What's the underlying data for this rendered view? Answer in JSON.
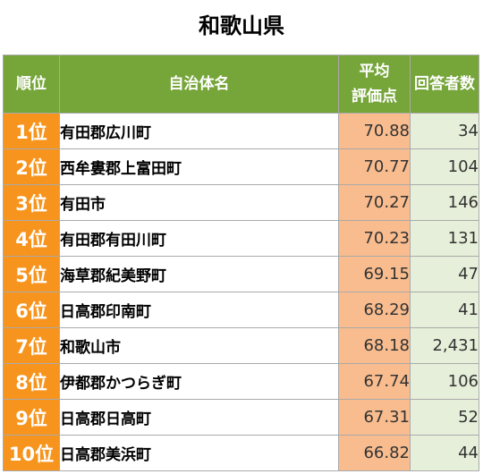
{
  "title": "和歌山県",
  "table": {
    "headers": {
      "rank": "順位",
      "municipality": "自治体名",
      "score_line1": "平均",
      "score_line2": "評価点",
      "count": "回答者数"
    },
    "rows": [
      {
        "rank": "1位",
        "municipality": "有田郡広川町",
        "score": "70.88",
        "count": "34"
      },
      {
        "rank": "2位",
        "municipality": "西牟婁郡上富田町",
        "score": "70.77",
        "count": "104"
      },
      {
        "rank": "3位",
        "municipality": "有田市",
        "score": "70.27",
        "count": "146"
      },
      {
        "rank": "4位",
        "municipality": "有田郡有田川町",
        "score": "70.23",
        "count": "131"
      },
      {
        "rank": "5位",
        "municipality": "海草郡紀美野町",
        "score": "69.15",
        "count": "47"
      },
      {
        "rank": "6位",
        "municipality": "日高郡印南町",
        "score": "68.29",
        "count": "41"
      },
      {
        "rank": "7位",
        "municipality": "和歌山市",
        "score": "68.18",
        "count": "2,431"
      },
      {
        "rank": "8位",
        "municipality": "伊都郡かつらぎ町",
        "score": "67.74",
        "count": "106"
      },
      {
        "rank": "9位",
        "municipality": "日高郡日高町",
        "score": "67.31",
        "count": "52"
      },
      {
        "rank": "10位",
        "municipality": "日高郡美浜町",
        "score": "66.82",
        "count": "44"
      }
    ]
  },
  "colors": {
    "header_bg": "#76a53a",
    "rank_bg": "#f7941d",
    "score_bg": "#f8bc8e",
    "count_bg": "#e6efd9"
  }
}
